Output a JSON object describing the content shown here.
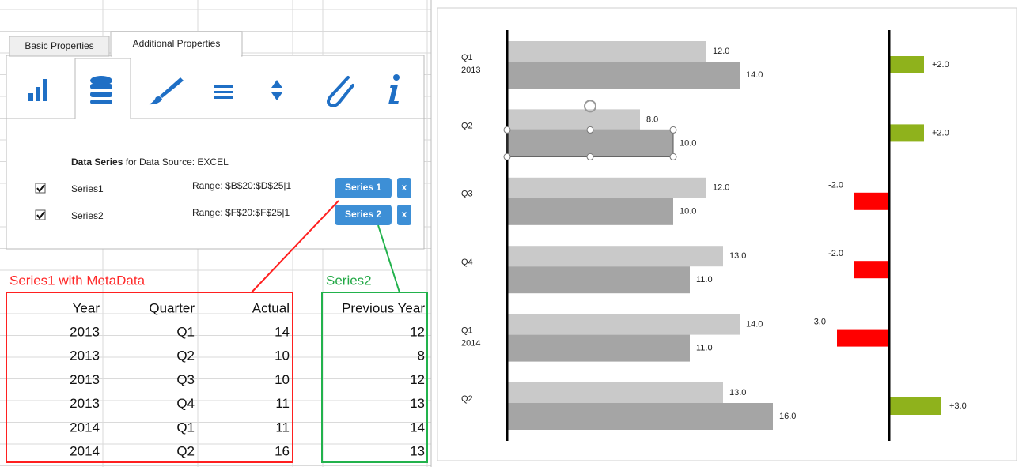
{
  "panel": {
    "tabs": [
      "Basic Properties",
      "Additional Properties"
    ],
    "heading_bold": "Data Series",
    "heading_rest": " for Data Source: EXCEL",
    "series": [
      {
        "name": "Series1",
        "range": "Range: $B$20:$D$25|1",
        "button": "Series 1",
        "remove": "x"
      },
      {
        "name": "Series2",
        "range": "Range: $F$20:$F$25|1",
        "button": "Series 2",
        "remove": "x"
      }
    ]
  },
  "sheet": {
    "label_series1": "Series1 with MetaData",
    "label_series2": "Series2",
    "headers": [
      "Year",
      "Quarter",
      "Actual",
      "Previous Year"
    ],
    "rows": [
      [
        2013,
        "Q1",
        14,
        12
      ],
      [
        2013,
        "Q2",
        10,
        8
      ],
      [
        2013,
        "Q3",
        10,
        12
      ],
      [
        2013,
        "Q4",
        11,
        13
      ],
      [
        2014,
        "Q1",
        11,
        14
      ],
      [
        2014,
        "Q2",
        16,
        13
      ]
    ]
  },
  "chart_data": {
    "type": "bar",
    "categories": [
      "Q1\n2013",
      "Q2",
      "Q3",
      "Q4",
      "Q1\n2014",
      "Q2"
    ],
    "series": [
      {
        "color": "#c9c9c9",
        "values": [
          12,
          8,
          12,
          13,
          14,
          13
        ],
        "value_labels": [
          "12.0",
          "8.0",
          "12.0",
          "13.0",
          "14.0",
          "13.0"
        ]
      },
      {
        "color": "#a5a5a5",
        "values": [
          14,
          10,
          10,
          11,
          11,
          16
        ],
        "value_labels": [
          "14.0",
          "10.0",
          "10.0",
          "11.0",
          "11.0",
          "16.0"
        ]
      },
      {
        "color": "#8fb21c",
        "negative_color": "#ff0000",
        "values": [
          2,
          2,
          -2,
          -2,
          -3,
          3
        ],
        "value_labels": [
          "+2.0",
          "+2.0",
          "-2.0",
          "-2.0",
          "-3.0",
          "+3.0"
        ]
      }
    ]
  }
}
